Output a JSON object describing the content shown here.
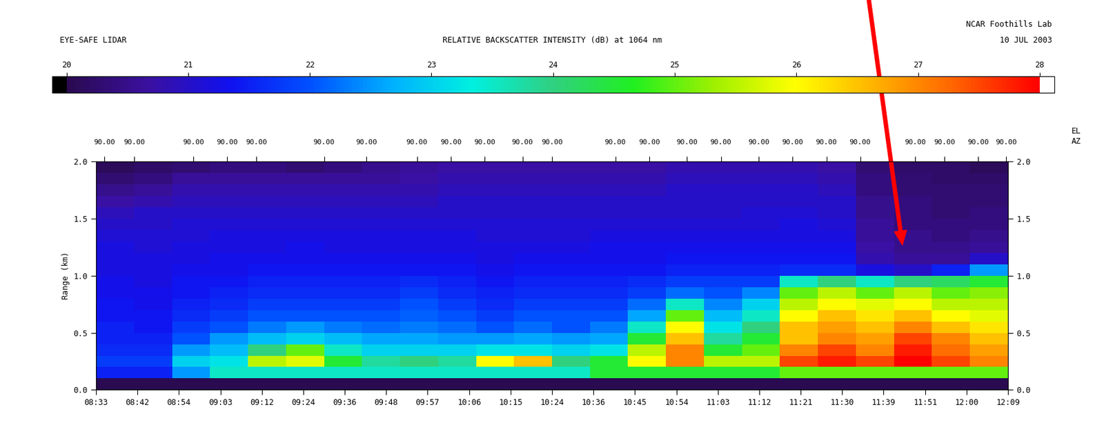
{
  "chart_data": {
    "type": "heatmap",
    "title": "RELATIVE BACKSCATTER INTENSITY (dB) at 1064 nm",
    "header_left": "EYE-SAFE LIDAR",
    "header_right": [
      "NCAR Foothills Lab",
      "10 JUL 2003"
    ],
    "side_labels": [
      "EL",
      "AZ"
    ],
    "ylabel": "Range (km)",
    "x_edges": [
      513,
      522,
      531,
      540,
      549,
      558,
      567,
      576,
      585,
      594,
      603,
      612,
      621,
      630,
      639,
      648,
      657,
      666,
      675,
      684,
      693,
      702,
      711,
      720,
      729
    ],
    "y_edges": [
      0.0,
      0.1,
      0.2,
      0.3,
      0.4,
      0.5,
      0.6,
      0.7,
      0.8,
      0.9,
      1.0,
      1.1,
      1.2,
      1.3,
      1.4,
      1.5,
      1.6,
      1.7,
      1.8,
      1.9,
      2.0
    ],
    "cells": [
      [
        20.0,
        20.0,
        20.0,
        20.0,
        20.0,
        20.0,
        20.0,
        20.0,
        20.0,
        20.0,
        20.0,
        20.0,
        20.0,
        20.0,
        20.0,
        20.0,
        20.0,
        20.0,
        20.0,
        20.0,
        20.0,
        20.0,
        20.0,
        20.0
      ],
      [
        21.5,
        21.5,
        22.5,
        23.5,
        23.5,
        23.5,
        23.5,
        23.5,
        23.5,
        23.5,
        23.5,
        23.5,
        23.5,
        24.5,
        24.5,
        24.5,
        24.5,
        24.5,
        25,
        25,
        25,
        25,
        25,
        25
      ],
      [
        21.8,
        21.8,
        23,
        23.2,
        25.5,
        25.8,
        24.5,
        23.8,
        24,
        23.8,
        26,
        26.5,
        24,
        24.5,
        26,
        27,
        25.5,
        25.5,
        27.5,
        27.8,
        27.5,
        28,
        27.5,
        27
      ],
      [
        21.6,
        21.6,
        22.5,
        22.8,
        24,
        25,
        23.5,
        23,
        23,
        23,
        23.2,
        23.2,
        23,
        23.2,
        25.5,
        27,
        24.5,
        25,
        27,
        27.5,
        27,
        27.8,
        27.2,
        26.8
      ],
      [
        21.5,
        21.5,
        22,
        22.5,
        22.8,
        23,
        22.8,
        22.6,
        22.6,
        22.5,
        22.5,
        22.6,
        22.5,
        22.6,
        24.5,
        26.5,
        23.8,
        24.5,
        26.5,
        27,
        26.8,
        27.5,
        27,
        26.5
      ],
      [
        21.5,
        21.4,
        21.8,
        22,
        22.3,
        22.5,
        22.3,
        22.2,
        22.3,
        22.2,
        22,
        22.2,
        22,
        22.3,
        23.5,
        26,
        23.2,
        24,
        26.5,
        26.8,
        26.5,
        27,
        26.5,
        26.2
      ],
      [
        21.4,
        21.4,
        21.6,
        21.8,
        22,
        22,
        22,
        22,
        22.1,
        22,
        21.8,
        22,
        22,
        22,
        22.6,
        25,
        22.8,
        23.5,
        26,
        26.5,
        26.2,
        26.5,
        26,
        25.8
      ],
      [
        21.4,
        21.3,
        21.5,
        21.6,
        21.8,
        21.8,
        21.8,
        21.8,
        22,
        21.8,
        21.6,
        21.8,
        21.8,
        21.8,
        22.2,
        23.5,
        22.4,
        23,
        25.5,
        26,
        25.8,
        26,
        25.5,
        25.5
      ],
      [
        21.3,
        21.3,
        21.4,
        21.5,
        21.6,
        21.6,
        21.6,
        21.6,
        21.8,
        21.6,
        21.5,
        21.6,
        21.6,
        21.6,
        21.8,
        22.2,
        22,
        22.4,
        25,
        25.5,
        25,
        25.5,
        25,
        25.2
      ],
      [
        21.3,
        21.2,
        21.4,
        21.4,
        21.5,
        21.5,
        21.5,
        21.5,
        21.6,
        21.5,
        21.4,
        21.5,
        21.5,
        21.5,
        21.6,
        21.8,
        21.8,
        21.8,
        23.5,
        24,
        23.5,
        24,
        24.2,
        24.5
      ],
      [
        21.2,
        21.2,
        21.3,
        21.3,
        21.4,
        21.4,
        21.4,
        21.4,
        21.4,
        21.4,
        21.3,
        21.4,
        21.4,
        21.4,
        21.4,
        21.5,
        21.5,
        21.5,
        21.6,
        21.6,
        21.2,
        21,
        21.5,
        22.5
      ],
      [
        21.2,
        21.2,
        21.2,
        21.3,
        21.3,
        21.3,
        21.3,
        21.3,
        21.3,
        21.3,
        21.2,
        21.3,
        21.3,
        21.3,
        21.3,
        21.4,
        21.4,
        21.4,
        21.4,
        21.4,
        20.8,
        20.6,
        20.6,
        21
      ],
      [
        21.2,
        21.1,
        21.2,
        21.2,
        21.2,
        21.3,
        21.2,
        21.2,
        21.2,
        21.2,
        21.2,
        21.2,
        21.2,
        21.3,
        21.3,
        21.3,
        21.3,
        21.3,
        21.3,
        21.3,
        20.7,
        20.5,
        20.5,
        20.6
      ],
      [
        21.1,
        21.1,
        21.1,
        21.2,
        21.2,
        21.2,
        21.2,
        21.2,
        21.2,
        21.2,
        21.1,
        21.1,
        21.1,
        21.2,
        21.2,
        21.2,
        21.2,
        21.2,
        21.2,
        21.2,
        20.6,
        20.5,
        20.4,
        20.5
      ],
      [
        21.0,
        21.0,
        21.1,
        21.1,
        21.1,
        21.1,
        21.1,
        21.1,
        21.1,
        21.1,
        21.1,
        21.1,
        21.1,
        21.1,
        21.1,
        21.1,
        21.1,
        21.1,
        21.2,
        21.1,
        20.6,
        20.4,
        20.4,
        20.4
      ],
      [
        20.9,
        21.0,
        21.0,
        21.0,
        21.0,
        21.0,
        21.0,
        21.0,
        21.0,
        21.0,
        21.0,
        21.0,
        21.0,
        21.0,
        21.0,
        21.0,
        21.0,
        21.1,
        21.1,
        21.0,
        20.5,
        20.4,
        20.3,
        20.4
      ],
      [
        20.7,
        20.8,
        20.9,
        20.9,
        20.9,
        20.9,
        20.9,
        20.9,
        20.9,
        21.0,
        21.0,
        21.0,
        21.0,
        21.0,
        21.0,
        21.0,
        21.0,
        21.0,
        21.0,
        21.0,
        20.5,
        20.4,
        20.3,
        20.3
      ],
      [
        20.5,
        20.6,
        20.8,
        20.8,
        20.8,
        20.8,
        20.8,
        20.8,
        20.8,
        20.9,
        20.9,
        20.9,
        20.9,
        20.9,
        20.9,
        21.0,
        21.0,
        21.0,
        21.0,
        20.9,
        20.4,
        20.3,
        20.3,
        20.3
      ],
      [
        20.3,
        20.4,
        20.6,
        20.6,
        20.6,
        20.6,
        20.6,
        20.6,
        20.7,
        20.8,
        20.8,
        20.8,
        20.8,
        20.8,
        20.8,
        20.9,
        20.9,
        20.9,
        20.9,
        20.8,
        20.4,
        20.3,
        20.2,
        20.2
      ],
      [
        20.1,
        20.2,
        20.3,
        20.4,
        20.4,
        20.3,
        20.4,
        20.5,
        20.6,
        20.7,
        20.7,
        20.7,
        20.7,
        20.7,
        20.7,
        20.8,
        20.8,
        20.8,
        20.8,
        20.7,
        20.3,
        20.2,
        20.2,
        20.1
      ]
    ],
    "xlim": [
      513,
      729
    ],
    "ylim": [
      0,
      2
    ],
    "xticks": [
      {
        "value": 513,
        "label": "08:33"
      },
      {
        "value": 522.8,
        "label": "08:42"
      },
      {
        "value": 532.6,
        "label": "08:54"
      },
      {
        "value": 542.5,
        "label": "09:03"
      },
      {
        "value": 552.3,
        "label": "09:12"
      },
      {
        "value": 562.1,
        "label": "09:24"
      },
      {
        "value": 571.9,
        "label": "09:36"
      },
      {
        "value": 581.7,
        "label": "09:48"
      },
      {
        "value": 591.5,
        "label": "09:57"
      },
      {
        "value": 601.4,
        "label": "10:06"
      },
      {
        "value": 611.2,
        "label": "10:15"
      },
      {
        "value": 621,
        "label": "10:24"
      },
      {
        "value": 630.8,
        "label": "10:36"
      },
      {
        "value": 640.6,
        "label": "10:45"
      },
      {
        "value": 650.5,
        "label": "10:54"
      },
      {
        "value": 660.3,
        "label": "11:03"
      },
      {
        "value": 670.1,
        "label": "11:12"
      },
      {
        "value": 679.9,
        "label": "11:21"
      },
      {
        "value": 689.7,
        "label": "11:30"
      },
      {
        "value": 699.5,
        "label": "11:39"
      },
      {
        "value": 709.4,
        "label": "11:51"
      },
      {
        "value": 719.2,
        "label": "12:00"
      },
      {
        "value": 729,
        "label": "12:09"
      }
    ],
    "x2ticks": [
      {
        "value": 515,
        "label": "90.00"
      },
      {
        "value": 522,
        "label": "90.00"
      },
      {
        "value": 536,
        "label": "90.00"
      },
      {
        "value": 544,
        "label": "90.00"
      },
      {
        "value": 551,
        "label": "90.00"
      },
      {
        "value": 567,
        "label": "90.00"
      },
      {
        "value": 577,
        "label": "90.00"
      },
      {
        "value": 589,
        "label": "90.00"
      },
      {
        "value": 597,
        "label": "90.00"
      },
      {
        "value": 605,
        "label": "90.00"
      },
      {
        "value": 614,
        "label": "90.00"
      },
      {
        "value": 621,
        "label": "90.00"
      },
      {
        "value": 636,
        "label": "90.00"
      },
      {
        "value": 644,
        "label": "90.00"
      },
      {
        "value": 653,
        "label": "90.00"
      },
      {
        "value": 661,
        "label": "90.00"
      },
      {
        "value": 670,
        "label": "90.00"
      },
      {
        "value": 678,
        "label": "90.00"
      },
      {
        "value": 686,
        "label": "90.00"
      },
      {
        "value": 694,
        "label": "90.00"
      },
      {
        "value": 707,
        "label": "90.00"
      },
      {
        "value": 714,
        "label": "90.00"
      },
      {
        "value": 722,
        "label": "90.00"
      },
      {
        "value": 728.5,
        "label": "90.00"
      }
    ],
    "yticks": [
      {
        "value": 0.0,
        "label": "0.0"
      },
      {
        "value": 0.5,
        "label": "0.5"
      },
      {
        "value": 1.0,
        "label": "1.0"
      },
      {
        "value": 1.5,
        "label": "1.5"
      },
      {
        "value": 2.0,
        "label": "2.0"
      }
    ],
    "colorbar": {
      "range": [
        20,
        28
      ],
      "ticks": [
        20,
        21,
        22,
        23,
        24,
        25,
        26,
        27,
        28
      ]
    }
  }
}
